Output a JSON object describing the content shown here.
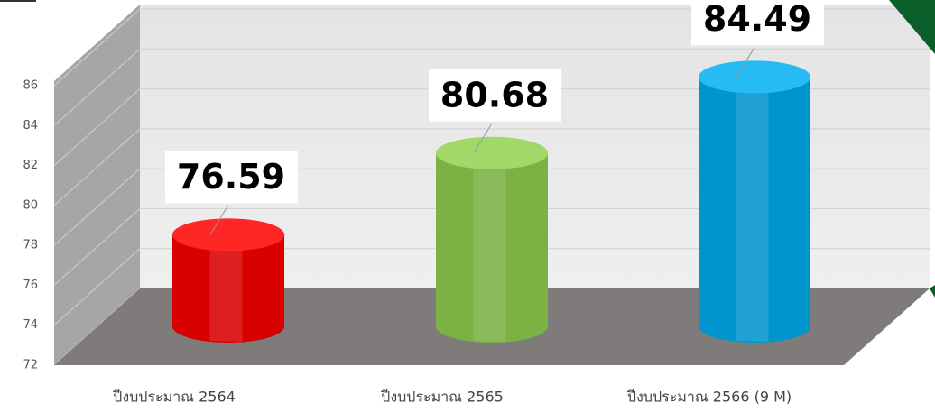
{
  "chart_data": {
    "type": "bar",
    "categories": [
      "ปีงบประมาณ 2564",
      "ปีงบประมาณ 2565",
      "ปีงบประมาณ 2566 (9 M)"
    ],
    "values": [
      76.59,
      80.68,
      84.49
    ],
    "colors": [
      "#ff0000",
      "#92d050",
      "#00b0f0"
    ],
    "ylim": [
      72,
      86
    ],
    "yticks": [
      72,
      74,
      76,
      78,
      80,
      82,
      84,
      86
    ],
    "grid": true
  }
}
